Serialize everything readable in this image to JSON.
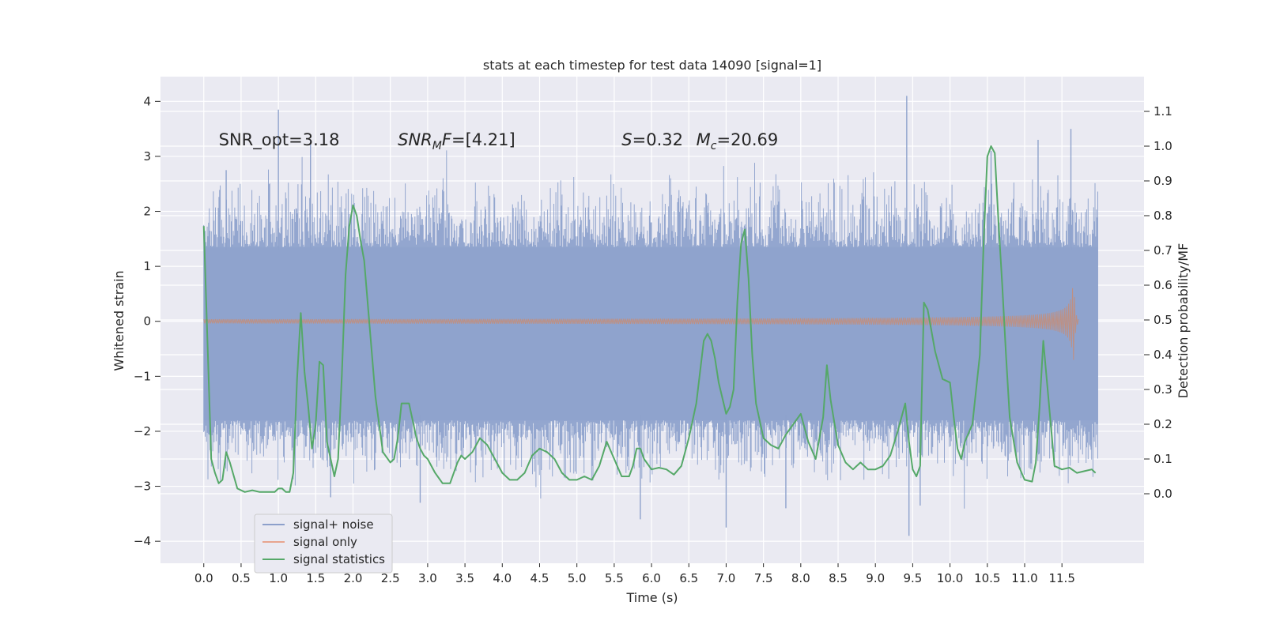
{
  "chart_data": {
    "type": "line",
    "title": "stats at each timestep for test data 14090 [signal=1]",
    "xlabel": "Time (s)",
    "ylabel": "Whitened strain",
    "y2label": "Detection probability/MF",
    "xlim": [
      -0.58,
      12.6
    ],
    "ylim": [
      -4.4,
      4.45
    ],
    "y2lim": [
      -0.2,
      1.2
    ],
    "xticks": [
      0.0,
      0.5,
      1.0,
      1.5,
      2.0,
      2.5,
      3.0,
      3.5,
      4.0,
      4.5,
      5.0,
      5.5,
      6.0,
      6.5,
      7.0,
      7.5,
      8.0,
      8.5,
      9.0,
      9.5,
      10.0,
      10.5,
      11.0,
      11.5
    ],
    "xtick_labels": [
      "0.0",
      "0.5",
      "1.0",
      "1.5",
      "2.0",
      "2.5",
      "3.0",
      "3.5",
      "4.0",
      "4.5",
      "5.0",
      "5.5",
      "6.0",
      "6.5",
      "7.0",
      "7.5",
      "8.0",
      "8.5",
      "9.0",
      "9.5",
      "10.0",
      "10.5",
      "11.0",
      "11.5"
    ],
    "yticks": [
      4,
      3,
      2,
      1,
      0,
      -1,
      -2,
      -3,
      -4
    ],
    "ytick_labels": [
      "4",
      "3",
      "2",
      "1",
      "0",
      "−1",
      "−2",
      "−3",
      "−4"
    ],
    "y2ticks": [
      1.1,
      1.0,
      0.9,
      0.8,
      0.7,
      0.6,
      0.5,
      0.4,
      0.3,
      0.2,
      0.1,
      0.0
    ],
    "y2tick_labels": [
      "1.1",
      "1.0",
      "0.9",
      "0.8",
      "0.7",
      "0.6",
      "0.5",
      "0.4",
      "0.3",
      "0.2",
      "0.1",
      "0.0"
    ],
    "annotations": [
      {
        "text": "SNR_opt=3.18",
        "x": 0.2,
        "y": 3.3
      },
      {
        "text": "SNR_MF=[4.21]",
        "x": 2.6,
        "y": 3.3
      },
      {
        "text": "S=0.32",
        "x": 5.6,
        "y": 3.3
      },
      {
        "text": "M_c=20.69",
        "x": 6.6,
        "y": 3.3
      }
    ],
    "legend": {
      "placement": "lower-left",
      "entries": [
        {
          "label": "signal+ noise",
          "color": "#8da0cb"
        },
        {
          "label": "signal only",
          "color": "#e8a58e"
        },
        {
          "label": "signal statistics",
          "color": "#55a868"
        }
      ]
    },
    "series": [
      {
        "name": "signal+ noise",
        "color": "#8ea2cc",
        "t_range": [
          0.0,
          11.98
        ],
        "core_range": [
          -1.8,
          1.35
        ],
        "spikes": [
          {
            "x": 1.0,
            "y": 3.85
          },
          {
            "x": 1.43,
            "y": 3.3
          },
          {
            "x": 9.42,
            "y": 4.1
          },
          {
            "x": 11.18,
            "y": 3.3
          },
          {
            "x": 11.62,
            "y": 3.5
          },
          {
            "x": 2.9,
            "y": -3.3
          },
          {
            "x": 7.0,
            "y": -3.75
          },
          {
            "x": 9.45,
            "y": -3.9
          },
          {
            "x": 9.6,
            "y": -3.35
          },
          {
            "x": 5.85,
            "y": -3.6
          },
          {
            "x": 7.8,
            "y": -3.4
          },
          {
            "x": 1.7,
            "y": -3.2
          },
          {
            "x": 0.3,
            "y": 2.75
          },
          {
            "x": 10.55,
            "y": 3.1
          }
        ]
      },
      {
        "name": "signal only",
        "color": "#dd8452",
        "t_range": [
          0.0,
          11.72
        ],
        "peak_time": 11.66,
        "peak_amplitude": 0.68
      },
      {
        "name": "signal statistics",
        "color": "#55a868",
        "axis": "right",
        "x": [
          0.0,
          0.1,
          0.15,
          0.2,
          0.25,
          0.3,
          0.35,
          0.45,
          0.55,
          0.65,
          0.75,
          0.85,
          0.95,
          1.0,
          1.05,
          1.1,
          1.15,
          1.2,
          1.25,
          1.3,
          1.35,
          1.4,
          1.45,
          1.5,
          1.55,
          1.6,
          1.65,
          1.7,
          1.75,
          1.8,
          1.85,
          1.9,
          1.95,
          2.0,
          2.05,
          2.1,
          2.15,
          2.2,
          2.3,
          2.4,
          2.5,
          2.55,
          2.6,
          2.65,
          2.7,
          2.75,
          2.8,
          2.85,
          2.9,
          2.95,
          3.0,
          3.1,
          3.2,
          3.3,
          3.4,
          3.45,
          3.5,
          3.6,
          3.7,
          3.8,
          3.9,
          4.0,
          4.1,
          4.2,
          4.3,
          4.4,
          4.5,
          4.6,
          4.7,
          4.8,
          4.9,
          5.0,
          5.1,
          5.2,
          5.3,
          5.4,
          5.5,
          5.6,
          5.7,
          5.75,
          5.8,
          5.85,
          5.9,
          6.0,
          6.1,
          6.2,
          6.3,
          6.4,
          6.5,
          6.6,
          6.7,
          6.75,
          6.8,
          6.85,
          6.9,
          7.0,
          7.05,
          7.1,
          7.15,
          7.2,
          7.25,
          7.3,
          7.35,
          7.4,
          7.5,
          7.6,
          7.7,
          7.8,
          7.9,
          8.0,
          8.05,
          8.1,
          8.2,
          8.3,
          8.35,
          8.4,
          8.5,
          8.6,
          8.7,
          8.8,
          8.9,
          9.0,
          9.1,
          9.2,
          9.3,
          9.4,
          9.45,
          9.5,
          9.55,
          9.6,
          9.65,
          9.7,
          9.8,
          9.9,
          10.0,
          10.05,
          10.1,
          10.15,
          10.2,
          10.3,
          10.4,
          10.45,
          10.5,
          10.55,
          10.6,
          10.65,
          10.7,
          10.75,
          10.8,
          10.9,
          11.0,
          11.1,
          11.15,
          11.2,
          11.25,
          11.3,
          11.4,
          11.5,
          11.6,
          11.7,
          11.8,
          11.9,
          11.95
        ],
        "values": [
          0.77,
          0.1,
          0.06,
          0.03,
          0.04,
          0.12,
          0.09,
          0.015,
          0.005,
          0.01,
          0.005,
          0.005,
          0.005,
          0.015,
          0.015,
          0.005,
          0.005,
          0.06,
          0.33,
          0.52,
          0.35,
          0.25,
          0.13,
          0.2,
          0.38,
          0.37,
          0.15,
          0.1,
          0.05,
          0.1,
          0.34,
          0.63,
          0.77,
          0.83,
          0.8,
          0.73,
          0.67,
          0.54,
          0.28,
          0.12,
          0.09,
          0.1,
          0.16,
          0.26,
          0.26,
          0.26,
          0.21,
          0.16,
          0.13,
          0.11,
          0.1,
          0.06,
          0.03,
          0.03,
          0.09,
          0.11,
          0.1,
          0.12,
          0.16,
          0.14,
          0.1,
          0.06,
          0.04,
          0.04,
          0.06,
          0.11,
          0.13,
          0.12,
          0.1,
          0.06,
          0.04,
          0.04,
          0.05,
          0.04,
          0.08,
          0.15,
          0.1,
          0.05,
          0.05,
          0.08,
          0.13,
          0.13,
          0.1,
          0.07,
          0.075,
          0.07,
          0.055,
          0.08,
          0.16,
          0.26,
          0.44,
          0.46,
          0.44,
          0.39,
          0.32,
          0.23,
          0.25,
          0.3,
          0.55,
          0.72,
          0.76,
          0.62,
          0.4,
          0.26,
          0.16,
          0.14,
          0.13,
          0.17,
          0.2,
          0.23,
          0.19,
          0.15,
          0.1,
          0.22,
          0.37,
          0.27,
          0.14,
          0.09,
          0.07,
          0.09,
          0.07,
          0.07,
          0.08,
          0.11,
          0.18,
          0.26,
          0.15,
          0.07,
          0.05,
          0.08,
          0.55,
          0.53,
          0.41,
          0.33,
          0.32,
          0.22,
          0.13,
          0.1,
          0.15,
          0.2,
          0.4,
          0.72,
          0.97,
          1.0,
          0.98,
          0.78,
          0.6,
          0.4,
          0.22,
          0.09,
          0.04,
          0.035,
          0.09,
          0.25,
          0.44,
          0.32,
          0.08,
          0.07,
          0.075,
          0.06,
          0.065,
          0.07,
          0.06
        ]
      }
    ]
  }
}
